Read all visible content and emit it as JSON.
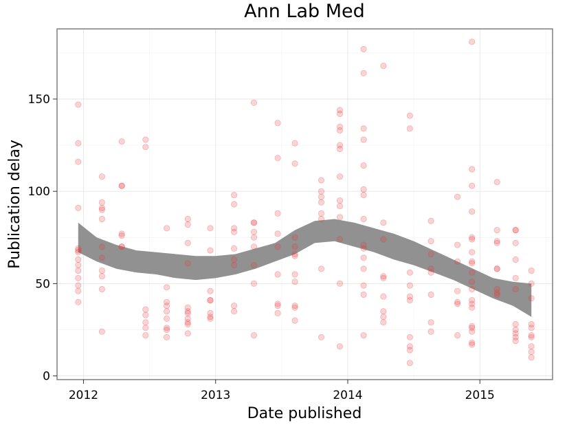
{
  "chart_data": {
    "type": "scatter",
    "title": "Ann Lab Med",
    "xlabel": "Date published",
    "ylabel": "Publication delay",
    "xlim": [
      2011.8,
      2015.55
    ],
    "ylim": [
      -2,
      188
    ],
    "x_ticks": [
      2012,
      2013,
      2014,
      2015
    ],
    "x_tick_labels": [
      "2012",
      "2013",
      "2014",
      "2015"
    ],
    "y_ticks": [
      0,
      50,
      100,
      150
    ],
    "y_tick_labels": [
      "0",
      "50",
      "100",
      "150"
    ],
    "grid": true,
    "legend": "none",
    "point_color": "#e8383d",
    "band_color": "#919191",
    "series": [
      {
        "type": "scatter",
        "points": [
          [
            2011.96,
            147
          ],
          [
            2011.96,
            126
          ],
          [
            2011.96,
            116
          ],
          [
            2011.96,
            91
          ],
          [
            2011.96,
            69
          ],
          [
            2011.96,
            68
          ],
          [
            2011.96,
            67
          ],
          [
            2011.96,
            63
          ],
          [
            2011.96,
            60
          ],
          [
            2011.96,
            57
          ],
          [
            2011.96,
            53
          ],
          [
            2011.96,
            49
          ],
          [
            2011.96,
            46
          ],
          [
            2011.96,
            40
          ],
          [
            2012.14,
            108
          ],
          [
            2012.14,
            94
          ],
          [
            2012.14,
            91
          ],
          [
            2012.14,
            90
          ],
          [
            2012.14,
            85
          ],
          [
            2012.14,
            70
          ],
          [
            2012.14,
            64
          ],
          [
            2012.14,
            57
          ],
          [
            2012.14,
            54
          ],
          [
            2012.14,
            47
          ],
          [
            2012.14,
            24
          ],
          [
            2012.29,
            127
          ],
          [
            2012.29,
            103
          ],
          [
            2012.29,
            103
          ],
          [
            2012.29,
            77
          ],
          [
            2012.29,
            76
          ],
          [
            2012.29,
            70
          ],
          [
            2012.29,
            70
          ],
          [
            2012.47,
            128
          ],
          [
            2012.47,
            124
          ],
          [
            2012.47,
            36
          ],
          [
            2012.47,
            33
          ],
          [
            2012.47,
            29
          ],
          [
            2012.47,
            26
          ],
          [
            2012.47,
            22
          ],
          [
            2012.63,
            80
          ],
          [
            2012.63,
            48
          ],
          [
            2012.63,
            40
          ],
          [
            2012.63,
            38
          ],
          [
            2012.63,
            35
          ],
          [
            2012.63,
            31
          ],
          [
            2012.63,
            26
          ],
          [
            2012.63,
            25
          ],
          [
            2012.63,
            21
          ],
          [
            2012.79,
            85
          ],
          [
            2012.79,
            82
          ],
          [
            2012.79,
            72
          ],
          [
            2012.79,
            61
          ],
          [
            2012.79,
            37
          ],
          [
            2012.79,
            35
          ],
          [
            2012.79,
            34
          ],
          [
            2012.79,
            31
          ],
          [
            2012.79,
            29
          ],
          [
            2012.79,
            28
          ],
          [
            2012.79,
            23
          ],
          [
            2012.96,
            80
          ],
          [
            2012.96,
            68
          ],
          [
            2012.96,
            46
          ],
          [
            2012.96,
            41
          ],
          [
            2012.96,
            41
          ],
          [
            2012.96,
            34
          ],
          [
            2012.96,
            32
          ],
          [
            2012.96,
            31
          ],
          [
            2013.14,
            98
          ],
          [
            2013.14,
            93
          ],
          [
            2013.14,
            80
          ],
          [
            2013.14,
            78
          ],
          [
            2013.14,
            69
          ],
          [
            2013.14,
            63
          ],
          [
            2013.14,
            60
          ],
          [
            2013.14,
            38
          ],
          [
            2013.14,
            35
          ],
          [
            2013.29,
            148
          ],
          [
            2013.29,
            83
          ],
          [
            2013.29,
            83
          ],
          [
            2013.29,
            78
          ],
          [
            2013.29,
            75
          ],
          [
            2013.29,
            70
          ],
          [
            2013.29,
            60
          ],
          [
            2013.29,
            50
          ],
          [
            2013.29,
            22
          ],
          [
            2013.47,
            137
          ],
          [
            2013.47,
            118
          ],
          [
            2013.47,
            88
          ],
          [
            2013.47,
            77
          ],
          [
            2013.47,
            70
          ],
          [
            2013.47,
            55
          ],
          [
            2013.47,
            39
          ],
          [
            2013.47,
            38
          ],
          [
            2013.47,
            34
          ],
          [
            2013.6,
            126
          ],
          [
            2013.6,
            115
          ],
          [
            2013.6,
            75
          ],
          [
            2013.6,
            70
          ],
          [
            2013.6,
            66
          ],
          [
            2013.6,
            65
          ],
          [
            2013.6,
            55
          ],
          [
            2013.6,
            51
          ],
          [
            2013.6,
            38
          ],
          [
            2013.6,
            37
          ],
          [
            2013.6,
            30
          ],
          [
            2013.8,
            106
          ],
          [
            2013.8,
            100
          ],
          [
            2013.8,
            97
          ],
          [
            2013.8,
            94
          ],
          [
            2013.8,
            88
          ],
          [
            2013.8,
            85
          ],
          [
            2013.8,
            58
          ],
          [
            2013.8,
            21
          ],
          [
            2013.94,
            144
          ],
          [
            2013.94,
            142
          ],
          [
            2013.94,
            135
          ],
          [
            2013.94,
            133
          ],
          [
            2013.94,
            125
          ],
          [
            2013.94,
            123
          ],
          [
            2013.94,
            108
          ],
          [
            2013.94,
            95
          ],
          [
            2013.94,
            92
          ],
          [
            2013.94,
            86
          ],
          [
            2013.94,
            74
          ],
          [
            2013.94,
            50
          ],
          [
            2013.94,
            16
          ],
          [
            2014.12,
            177
          ],
          [
            2014.12,
            164
          ],
          [
            2014.12,
            134
          ],
          [
            2014.12,
            128
          ],
          [
            2014.12,
            114
          ],
          [
            2014.12,
            101
          ],
          [
            2014.12,
            98
          ],
          [
            2014.12,
            85
          ],
          [
            2014.12,
            71
          ],
          [
            2014.12,
            69
          ],
          [
            2014.12,
            64
          ],
          [
            2014.12,
            58
          ],
          [
            2014.12,
            49
          ],
          [
            2014.12,
            44
          ],
          [
            2014.12,
            22
          ],
          [
            2014.27,
            168
          ],
          [
            2014.27,
            83
          ],
          [
            2014.27,
            74
          ],
          [
            2014.27,
            54
          ],
          [
            2014.27,
            53
          ],
          [
            2014.27,
            43
          ],
          [
            2014.27,
            35
          ],
          [
            2014.27,
            32
          ],
          [
            2014.27,
            29
          ],
          [
            2014.47,
            141
          ],
          [
            2014.47,
            134
          ],
          [
            2014.47,
            56
          ],
          [
            2014.47,
            49
          ],
          [
            2014.47,
            43
          ],
          [
            2014.47,
            41
          ],
          [
            2014.47,
            21
          ],
          [
            2014.47,
            16
          ],
          [
            2014.47,
            14
          ],
          [
            2014.47,
            7
          ],
          [
            2014.63,
            84
          ],
          [
            2014.63,
            73
          ],
          [
            2014.63,
            66
          ],
          [
            2014.63,
            58
          ],
          [
            2014.63,
            56
          ],
          [
            2014.63,
            44
          ],
          [
            2014.63,
            29
          ],
          [
            2014.63,
            24
          ],
          [
            2014.83,
            97
          ],
          [
            2014.83,
            71
          ],
          [
            2014.83,
            62
          ],
          [
            2014.83,
            46
          ],
          [
            2014.83,
            40
          ],
          [
            2014.83,
            39
          ],
          [
            2014.83,
            22
          ],
          [
            2014.94,
            181
          ],
          [
            2014.94,
            112
          ],
          [
            2014.94,
            103
          ],
          [
            2014.94,
            89
          ],
          [
            2014.94,
            75
          ],
          [
            2014.94,
            74
          ],
          [
            2014.94,
            67
          ],
          [
            2014.94,
            62
          ],
          [
            2014.94,
            61
          ],
          [
            2014.94,
            56
          ],
          [
            2014.94,
            51
          ],
          [
            2014.94,
            47
          ],
          [
            2014.94,
            41
          ],
          [
            2014.94,
            39
          ],
          [
            2014.94,
            37
          ],
          [
            2014.94,
            27
          ],
          [
            2014.94,
            26
          ],
          [
            2014.94,
            24
          ],
          [
            2014.94,
            18
          ],
          [
            2014.94,
            17
          ],
          [
            2015.13,
            105
          ],
          [
            2015.13,
            79
          ],
          [
            2015.13,
            73
          ],
          [
            2015.13,
            72
          ],
          [
            2015.13,
            58
          ],
          [
            2015.13,
            58
          ],
          [
            2015.13,
            47
          ],
          [
            2015.13,
            45
          ],
          [
            2015.13,
            44
          ],
          [
            2015.27,
            79
          ],
          [
            2015.27,
            79
          ],
          [
            2015.27,
            72
          ],
          [
            2015.27,
            63
          ],
          [
            2015.27,
            53
          ],
          [
            2015.27,
            47
          ],
          [
            2015.27,
            28
          ],
          [
            2015.27,
            25
          ],
          [
            2015.27,
            23
          ],
          [
            2015.27,
            21
          ],
          [
            2015.27,
            19
          ],
          [
            2015.39,
            57
          ],
          [
            2015.39,
            50
          ],
          [
            2015.39,
            42
          ],
          [
            2015.39,
            28
          ],
          [
            2015.39,
            26
          ],
          [
            2015.39,
            22
          ],
          [
            2015.39,
            21
          ],
          [
            2015.39,
            16
          ],
          [
            2015.39,
            13
          ],
          [
            2015.39,
            10
          ]
        ]
      },
      {
        "type": "area",
        "x": [
          2011.96,
          2012.1,
          2012.25,
          2012.4,
          2012.55,
          2012.7,
          2012.85,
          2013.0,
          2013.15,
          2013.3,
          2013.45,
          2013.6,
          2013.75,
          2013.9,
          2014.05,
          2014.2,
          2014.35,
          2014.5,
          2014.65,
          2014.8,
          2014.95,
          2015.1,
          2015.25,
          2015.39
        ],
        "upper": [
          83,
          75,
          71,
          68,
          67,
          66,
          65,
          65,
          66,
          69,
          72,
          79,
          84,
          85,
          83,
          80,
          77,
          73,
          68,
          63,
          58,
          53,
          51,
          50
        ],
        "lower": [
          67,
          62,
          58,
          56,
          55,
          53,
          52,
          53,
          55,
          58,
          62,
          66,
          72,
          73,
          70,
          67,
          63,
          60,
          56,
          52,
          47,
          42,
          38,
          32
        ]
      }
    ]
  }
}
